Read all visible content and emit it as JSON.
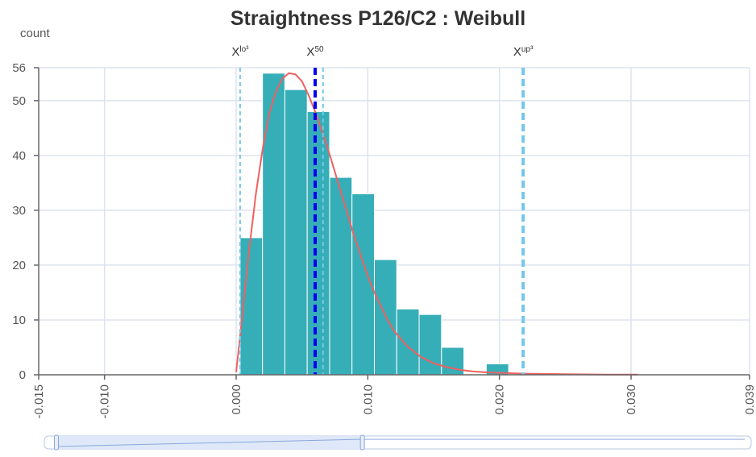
{
  "chart_data": {
    "type": "bar",
    "title": "Straightness P126/C2 : Weibull",
    "ylabel": "count",
    "xlabel": "",
    "xlim": [
      -0.015,
      0.039
    ],
    "ylim": [
      0,
      56
    ],
    "grid": true,
    "x_ticks": [
      -0.015,
      -0.01,
      0.0,
      0.01,
      0.02,
      0.03,
      0.039
    ],
    "x_tick_labels": [
      "-0.015",
      "-0.010",
      "0.000",
      "0.010",
      "0.020",
      "0.030",
      "0.039"
    ],
    "y_ticks": [
      0,
      10,
      20,
      30,
      40,
      50,
      56
    ],
    "y_tick_labels": [
      "0",
      "10",
      "20",
      "30",
      "40",
      "50",
      "56"
    ],
    "bin_width": 0.0017,
    "bins": [
      {
        "x0": 0.0003,
        "x1": 0.002,
        "count": 25
      },
      {
        "x0": 0.002,
        "x1": 0.0037,
        "count": 55
      },
      {
        "x0": 0.0037,
        "x1": 0.0054,
        "count": 52
      },
      {
        "x0": 0.0054,
        "x1": 0.0071,
        "count": 48
      },
      {
        "x0": 0.0071,
        "x1": 0.0088,
        "count": 36
      },
      {
        "x0": 0.0088,
        "x1": 0.0105,
        "count": 33
      },
      {
        "x0": 0.0105,
        "x1": 0.0122,
        "count": 21
      },
      {
        "x0": 0.0122,
        "x1": 0.0139,
        "count": 12
      },
      {
        "x0": 0.0139,
        "x1": 0.0156,
        "count": 11
      },
      {
        "x0": 0.0156,
        "x1": 0.0173,
        "count": 5
      },
      {
        "x0": 0.019,
        "x1": 0.0207,
        "count": 2
      }
    ],
    "fit_curve": {
      "distribution": "Weibull",
      "points": [
        [
          0.0,
          0.5
        ],
        [
          0.0003,
          7
        ],
        [
          0.0006,
          14
        ],
        [
          0.001,
          23
        ],
        [
          0.0015,
          33
        ],
        [
          0.002,
          41
        ],
        [
          0.0025,
          47.5
        ],
        [
          0.003,
          51.5
        ],
        [
          0.0035,
          54
        ],
        [
          0.004,
          55
        ],
        [
          0.0045,
          54.8
        ],
        [
          0.005,
          53.5
        ],
        [
          0.0055,
          51
        ],
        [
          0.006,
          48
        ],
        [
          0.0065,
          44.5
        ],
        [
          0.007,
          41
        ],
        [
          0.0075,
          37
        ],
        [
          0.008,
          33
        ],
        [
          0.0085,
          29
        ],
        [
          0.009,
          25
        ],
        [
          0.0095,
          21.5
        ],
        [
          0.01,
          18
        ],
        [
          0.0105,
          15
        ],
        [
          0.011,
          12.5
        ],
        [
          0.0115,
          10
        ],
        [
          0.012,
          8
        ],
        [
          0.013,
          5.2
        ],
        [
          0.014,
          3.3
        ],
        [
          0.015,
          2.1
        ],
        [
          0.016,
          1.4
        ],
        [
          0.017,
          0.9
        ],
        [
          0.018,
          0.6
        ],
        [
          0.019,
          0.45
        ],
        [
          0.02,
          0.35
        ],
        [
          0.022,
          0.2
        ],
        [
          0.025,
          0.1
        ],
        [
          0.028,
          0.05
        ],
        [
          0.0305,
          0.03
        ]
      ]
    },
    "reference_lines": [
      {
        "label_main": "X",
        "label_sup": "lo³",
        "x": 0.0003,
        "style": "dashed-thin",
        "color": "#74c7ec",
        "labeled": true
      },
      {
        "label_main": "X",
        "label_sup": "50",
        "x": 0.006,
        "style": "dashed-thick",
        "color": "#0000ee",
        "labeled": true
      },
      {
        "label_main": "",
        "label_sup": "",
        "x": 0.0066,
        "style": "dashed-thin",
        "color": "#74c7ec",
        "labeled": false
      },
      {
        "label_main": "X",
        "label_sup": "up³",
        "x": 0.0218,
        "style": "dashed-thick",
        "color": "#74c7ec",
        "labeled": true
      }
    ],
    "colors": {
      "bar": "#36aeb8",
      "curve": "#f06060",
      "grid": "#dde3ee",
      "axis": "#666666",
      "slider_fill": "#dfe8f8",
      "slider_border": "#b8c8e6"
    },
    "zoom_slider": {
      "start": 0.0,
      "end": 0.45
    }
  }
}
